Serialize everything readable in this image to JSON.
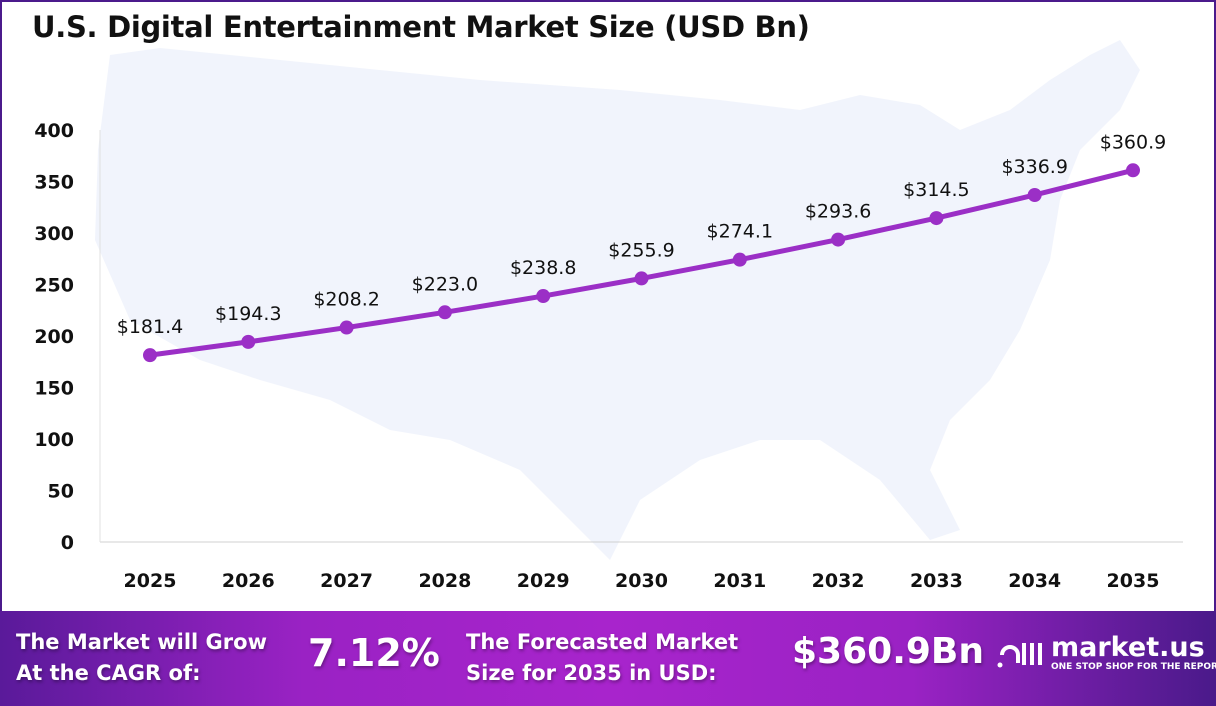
{
  "chart_data": {
    "type": "line",
    "title": "U.S. Digital Entertainment Market Size (USD Bn)",
    "categories": [
      "2025",
      "2026",
      "2027",
      "2028",
      "2029",
      "2030",
      "2031",
      "2032",
      "2033",
      "2034",
      "2035"
    ],
    "values": [
      181.4,
      194.3,
      208.2,
      223.0,
      238.8,
      255.9,
      274.1,
      293.6,
      314.5,
      336.9,
      360.9
    ],
    "data_labels": [
      "$181.4",
      "$194.3",
      "$208.2",
      "$223.0",
      "$238.8",
      "$255.9",
      "$274.1",
      "$293.6",
      "$314.5",
      "$336.9",
      "$360.9"
    ],
    "yticks": [
      "0",
      "50",
      "100",
      "150",
      "200",
      "250",
      "300",
      "350",
      "400"
    ],
    "ylim": [
      0,
      400
    ],
    "grid": false,
    "line_color": "#9b2fc6",
    "xlabel": "",
    "ylabel": ""
  },
  "banner": {
    "cagr_label": [
      "The Market will Grow",
      "At the CAGR of:"
    ],
    "cagr_value": "7.12%",
    "forecast_label": [
      "The Forecasted Market",
      "Size for 2035 in USD:"
    ],
    "forecast_value": "$360.9Bn",
    "logo_name": "market.us",
    "logo_tagline": "ONE STOP SHOP FOR THE REPORTS"
  }
}
